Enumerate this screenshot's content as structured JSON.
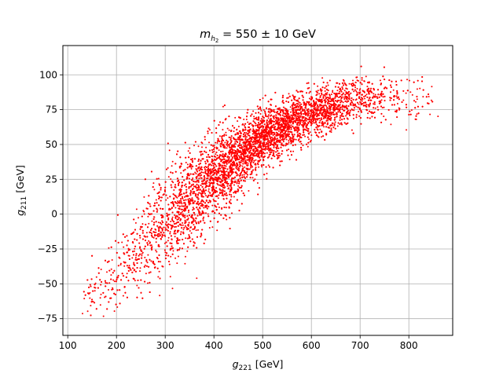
{
  "chart_data": {
    "type": "scatter",
    "title": {
      "base": "m",
      "subscript": "h",
      "subsubscript": "2",
      "rest": " = 550 ± 10 GeV"
    },
    "xlabel": {
      "base": "g",
      "subscript": "221",
      "unit": " [GeV]"
    },
    "ylabel": {
      "base": "g",
      "subscript": "211",
      "unit": " [GeV]"
    },
    "xlim": [
      90,
      890
    ],
    "ylim": [
      -87,
      121
    ],
    "xticks": [
      100,
      200,
      300,
      400,
      500,
      600,
      700,
      800
    ],
    "yticks": [
      -75,
      -50,
      -25,
      0,
      25,
      50,
      75,
      100
    ],
    "grid": true,
    "marker_color": "#ff0000",
    "series": [
      {
        "name": "",
        "point_count": 9000,
        "x_range": [
          130,
          860
        ],
        "y_range": [
          -78,
          114
        ],
        "trend_x": [
          130,
          200,
          300,
          400,
          500,
          600,
          700,
          800,
          860
        ],
        "trend_y": [
          -62,
          -45,
          -5,
          25,
          55,
          72,
          83,
          85,
          80
        ],
        "spread_y": [
          12,
          20,
          30,
          25,
          18,
          14,
          14,
          16,
          14
        ]
      }
    ]
  }
}
